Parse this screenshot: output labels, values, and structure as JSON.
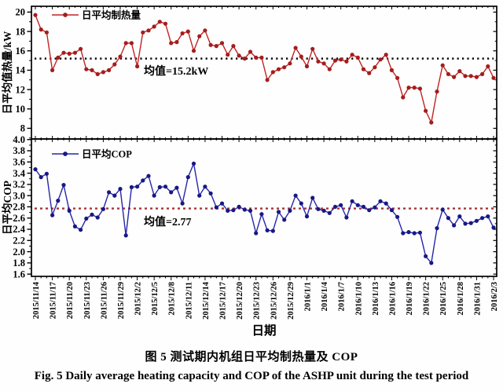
{
  "figure": {
    "caption_zh": "图 5 测试期内机组日平均制热量及 COP",
    "caption_en": "Fig. 5 Daily average heating capacity and COP of the ASHP unit during the test period"
  },
  "x_axis": {
    "label": "日期",
    "n_points": 82,
    "tick_every": 3,
    "tick_labels": [
      "2015/11/14",
      "2015/11/17",
      "2015/11/20",
      "2015/11/23",
      "2015/11/26",
      "2015/11/29",
      "2015/12/2",
      "2015/12/5",
      "2015/12/8",
      "2015/12/11",
      "2015/12/14",
      "2015/12/17",
      "2015/12/20",
      "2015/12/23",
      "2015/12/26",
      "2015/12/29",
      "2016/1/1",
      "2016/1/4",
      "2016/1/7",
      "2016/1/10",
      "2016/1/13",
      "2016/1/16",
      "2016/1/19",
      "2016/1/22",
      "2016/1/25",
      "2016/1/28",
      "2016/1/31",
      "2016/2/3"
    ]
  },
  "chart_data": [
    {
      "type": "line",
      "name": "heating",
      "panel": "top",
      "legend": "日平均制热量",
      "ylabel": "日平均值热量/kW",
      "ylim": [
        6.9,
        20.6
      ],
      "yticks": [
        8,
        10,
        12,
        14,
        16,
        18,
        20
      ],
      "ytick_labels": [
        "8",
        "10",
        "12",
        "14",
        "16",
        "18",
        "20"
      ],
      "major_step": 2,
      "minor_step": 1,
      "grid": false,
      "line_color": "#c02423",
      "marker_color": "#a41d1d",
      "mean": {
        "value": 15.2,
        "label": "均值=15.2kW",
        "color": "#0a0a0a"
      },
      "values": [
        19.7,
        18.2,
        17.9,
        14.0,
        15.3,
        15.8,
        15.7,
        15.8,
        16.2,
        14.1,
        14.0,
        13.6,
        13.8,
        14.0,
        14.6,
        15.4,
        16.8,
        16.8,
        14.4,
        17.9,
        18.1,
        18.5,
        19.0,
        18.8,
        16.8,
        16.9,
        17.8,
        18.0,
        16.0,
        17.5,
        18.1,
        16.6,
        16.5,
        16.8,
        15.6,
        16.5,
        15.5,
        15.2,
        15.9,
        15.3,
        15.3,
        13.0,
        13.8,
        14.1,
        14.3,
        14.7,
        16.3,
        15.4,
        14.4,
        16.2,
        14.9,
        14.7,
        14.1,
        15.0,
        15.1,
        14.9,
        15.6,
        15.3,
        14.1,
        13.7,
        14.3,
        15.1,
        15.6,
        14.0,
        13.2,
        11.2,
        12.2,
        12.2,
        12.1,
        9.8,
        8.6,
        11.8,
        14.5,
        13.6,
        13.3,
        13.9,
        13.4,
        13.4,
        13.3,
        13.6,
        14.4,
        13.2
      ]
    },
    {
      "type": "line",
      "name": "cop",
      "panel": "bottom",
      "legend": "日平均COP",
      "ylabel": "日平均COP",
      "ylim": [
        1.56,
        4.01
      ],
      "yticks": [
        1.6,
        1.8,
        2.0,
        2.2,
        2.4,
        2.6,
        2.8,
        3.0,
        3.2,
        3.4,
        3.6,
        3.8,
        4.0
      ],
      "ytick_labels": [
        "1.6",
        "1.8",
        "2.0",
        "2.2",
        "2.4",
        "2.6",
        "2.8",
        "3.0",
        "3.2",
        "3.4",
        "3.6",
        "3.8",
        "4.0"
      ],
      "major_step": 0.2,
      "minor_step": 0.1,
      "grid": false,
      "line_color": "#2626ab",
      "marker_color": "#181884",
      "mean": {
        "value": 2.77,
        "label": "均值=2.77",
        "color": "#a43434"
      },
      "values": [
        3.47,
        3.33,
        3.39,
        2.65,
        2.91,
        3.19,
        2.73,
        2.45,
        2.39,
        2.59,
        2.66,
        2.61,
        2.76,
        3.06,
        3.0,
        3.12,
        2.29,
        3.15,
        3.16,
        3.27,
        3.35,
        3.0,
        3.15,
        3.16,
        3.06,
        3.14,
        2.86,
        3.33,
        3.57,
        3.0,
        3.16,
        3.04,
        2.79,
        2.86,
        2.73,
        2.74,
        2.8,
        2.75,
        2.73,
        2.33,
        2.67,
        2.38,
        2.37,
        2.71,
        2.57,
        2.73,
        3.0,
        2.86,
        2.63,
        2.96,
        2.76,
        2.73,
        2.69,
        2.8,
        2.83,
        2.61,
        2.9,
        2.83,
        2.8,
        2.74,
        2.79,
        2.9,
        2.86,
        2.74,
        2.62,
        2.33,
        2.35,
        2.33,
        2.34,
        1.92,
        1.8,
        2.42,
        2.75,
        2.6,
        2.47,
        2.63,
        2.5,
        2.51,
        2.55,
        2.6,
        2.63,
        2.43
      ]
    }
  ]
}
